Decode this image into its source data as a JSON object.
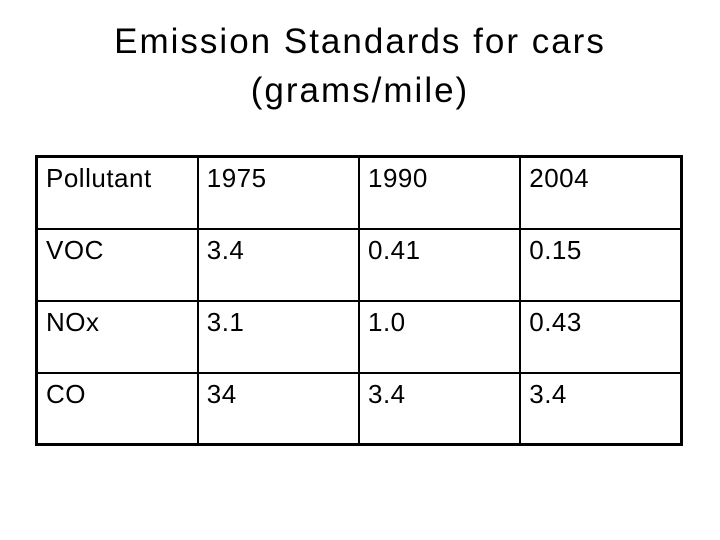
{
  "slide": {
    "title_line1": "Emission Standards for cars",
    "title_line2": "(grams/mile)"
  },
  "table": {
    "headers": [
      "Pollutant",
      "1975",
      "1990",
      "2004"
    ],
    "rows": [
      {
        "label": "VOC",
        "values": [
          "3.4",
          "0.41",
          "0.15"
        ]
      },
      {
        "label": "NOx",
        "values": [
          "3.1",
          "1.0",
          "0.43"
        ]
      },
      {
        "label": "CO",
        "values": [
          "34",
          "3.4",
          "3.4"
        ]
      }
    ]
  },
  "colors": {
    "text": "#000000",
    "background": "#ffffff",
    "table_border": "#000000"
  },
  "chart_data": {
    "type": "table",
    "title": "Emission Standards for cars (grams/mile)",
    "units": "grams/mile",
    "columns": [
      "Pollutant",
      "1975",
      "1990",
      "2004"
    ],
    "rows": [
      [
        "VOC",
        3.4,
        0.41,
        0.15
      ],
      [
        "NOx",
        3.1,
        1.0,
        0.43
      ],
      [
        "CO",
        34,
        3.4,
        3.4
      ]
    ]
  }
}
